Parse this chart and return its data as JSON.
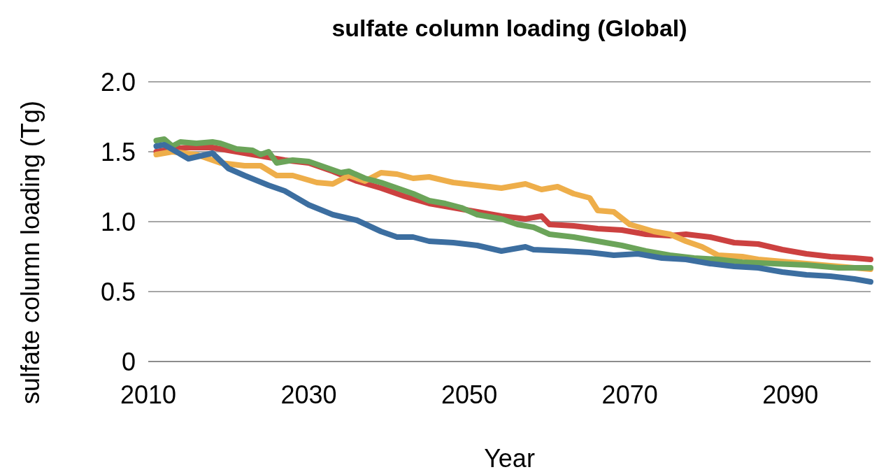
{
  "chart_data": {
    "type": "line",
    "title": "sulfate column loading (Global)",
    "xlabel": "Year",
    "ylabel": "sulfate column loading (Tg)",
    "xlim": [
      2010,
      2100
    ],
    "xticks": [
      2010,
      2030,
      2050,
      2070,
      2090
    ],
    "ylim": [
      0,
      2
    ],
    "yticks": [
      0,
      0.5,
      {
        "value": 1,
        "label": "1.0"
      },
      1.5,
      {
        "value": 2,
        "label": "2.0"
      }
    ],
    "grid": "y",
    "marker": "none",
    "line_style": "solid",
    "series": [
      {
        "color": "#cc4140",
        "x": [
          2011,
          2013,
          2015,
          2018,
          2021,
          2024,
          2027,
          2030,
          2033,
          2036,
          2039,
          2042,
          2045,
          2048,
          2051,
          2054,
          2057,
          2059,
          2060,
          2063,
          2066,
          2069,
          2072,
          2075,
          2077,
          2080,
          2083,
          2086,
          2089,
          2092,
          2095,
          2098,
          2100
        ],
        "values": [
          1.5,
          1.52,
          1.53,
          1.53,
          1.5,
          1.47,
          1.44,
          1.42,
          1.36,
          1.29,
          1.24,
          1.18,
          1.13,
          1.1,
          1.07,
          1.04,
          1.02,
          1.04,
          0.98,
          0.97,
          0.95,
          0.94,
          0.91,
          0.9,
          0.91,
          0.89,
          0.85,
          0.84,
          0.8,
          0.77,
          0.75,
          0.74,
          0.73
        ]
      },
      {
        "color": "#eeae4a",
        "x": [
          2011,
          2013,
          2016,
          2019,
          2022,
          2024,
          2026,
          2028,
          2031,
          2033,
          2035,
          2037,
          2039,
          2041,
          2043,
          2045,
          2048,
          2051,
          2054,
          2057,
          2059,
          2061,
          2063,
          2065,
          2066,
          2068,
          2070,
          2073,
          2075,
          2077,
          2079,
          2081,
          2084,
          2086,
          2090,
          2094,
          2098,
          2100
        ],
        "values": [
          1.48,
          1.5,
          1.48,
          1.42,
          1.4,
          1.4,
          1.33,
          1.33,
          1.28,
          1.27,
          1.33,
          1.29,
          1.35,
          1.34,
          1.31,
          1.32,
          1.28,
          1.26,
          1.24,
          1.27,
          1.23,
          1.25,
          1.2,
          1.17,
          1.08,
          1.07,
          0.98,
          0.93,
          0.91,
          0.86,
          0.82,
          0.76,
          0.75,
          0.73,
          0.71,
          0.69,
          0.67,
          0.66
        ]
      },
      {
        "color": "#6ba459",
        "x": [
          2011,
          2012,
          2013,
          2014,
          2016,
          2018,
          2019,
          2021,
          2023,
          2024,
          2025,
          2026,
          2028,
          2030,
          2032,
          2034,
          2035,
          2037,
          2039,
          2041,
          2043,
          2045,
          2047,
          2049,
          2051,
          2054,
          2056,
          2058,
          2060,
          2063,
          2066,
          2069,
          2072,
          2075,
          2078,
          2081,
          2084,
          2088,
          2092,
          2096,
          2100
        ],
        "values": [
          1.58,
          1.59,
          1.54,
          1.57,
          1.56,
          1.57,
          1.56,
          1.52,
          1.51,
          1.48,
          1.5,
          1.42,
          1.44,
          1.43,
          1.39,
          1.35,
          1.36,
          1.31,
          1.28,
          1.24,
          1.2,
          1.15,
          1.13,
          1.1,
          1.05,
          1.02,
          0.98,
          0.96,
          0.91,
          0.89,
          0.86,
          0.83,
          0.79,
          0.76,
          0.74,
          0.73,
          0.71,
          0.7,
          0.69,
          0.67,
          0.67
        ]
      },
      {
        "color": "#3c6ea0",
        "x": [
          2011,
          2012,
          2015,
          2018,
          2020,
          2022,
          2025,
          2027,
          2030,
          2033,
          2036,
          2039,
          2041,
          2043,
          2045,
          2048,
          2051,
          2054,
          2057,
          2058,
          2062,
          2065,
          2068,
          2071,
          2074,
          2077,
          2080,
          2083,
          2086,
          2089,
          2092,
          2095,
          2098,
          2100
        ],
        "values": [
          1.54,
          1.55,
          1.45,
          1.49,
          1.38,
          1.33,
          1.26,
          1.22,
          1.12,
          1.05,
          1.01,
          0.93,
          0.89,
          0.89,
          0.86,
          0.85,
          0.83,
          0.79,
          0.82,
          0.8,
          0.79,
          0.78,
          0.76,
          0.77,
          0.74,
          0.73,
          0.7,
          0.68,
          0.67,
          0.64,
          0.62,
          0.61,
          0.59,
          0.57
        ]
      }
    ]
  }
}
